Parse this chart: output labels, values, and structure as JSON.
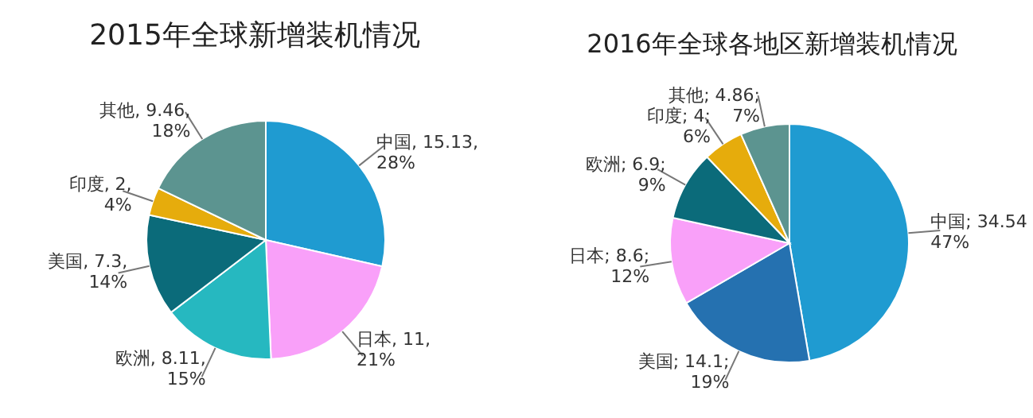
{
  "chart_data": [
    {
      "type": "pie",
      "title": "2015年全球新增装机情况",
      "categories": [
        "中国",
        "日本",
        "欧洲",
        "美国",
        "印度",
        "其他"
      ],
      "values": [
        15.13,
        11,
        8.11,
        7.3,
        2,
        9.46
      ],
      "colors": [
        "#1f9bd1",
        "#f9a0f9",
        "#26b8c0",
        "#0b6b7a",
        "#e6ac0c",
        "#5c9490"
      ],
      "value_labels": [
        ", 15.13, 28%",
        ", 11, 21%",
        ", 8.11, 15%",
        ", 7.3, 14%",
        ", 2, 4%",
        ", 9.46, 18%"
      ]
    },
    {
      "type": "pie",
      "title": "2016年全球各地区新增装机情况",
      "categories": [
        "中国",
        "美国",
        "日本",
        "欧洲",
        "印度",
        "其他"
      ],
      "values": [
        34.54,
        14.1,
        8.6,
        6.9,
        4,
        4.86
      ],
      "colors": [
        "#1f9bd1",
        "#2571b0",
        "#f9a0f9",
        "#0b6b7a",
        "#e6ac0c",
        "#5c9490"
      ],
      "value_labels": [
        "; 34.54 47%",
        "; 14.1; 19%",
        "; 8.6; 12%",
        "; 6.9; 9%",
        "; 4; 6%",
        "; 4.86; 7%"
      ]
    }
  ]
}
